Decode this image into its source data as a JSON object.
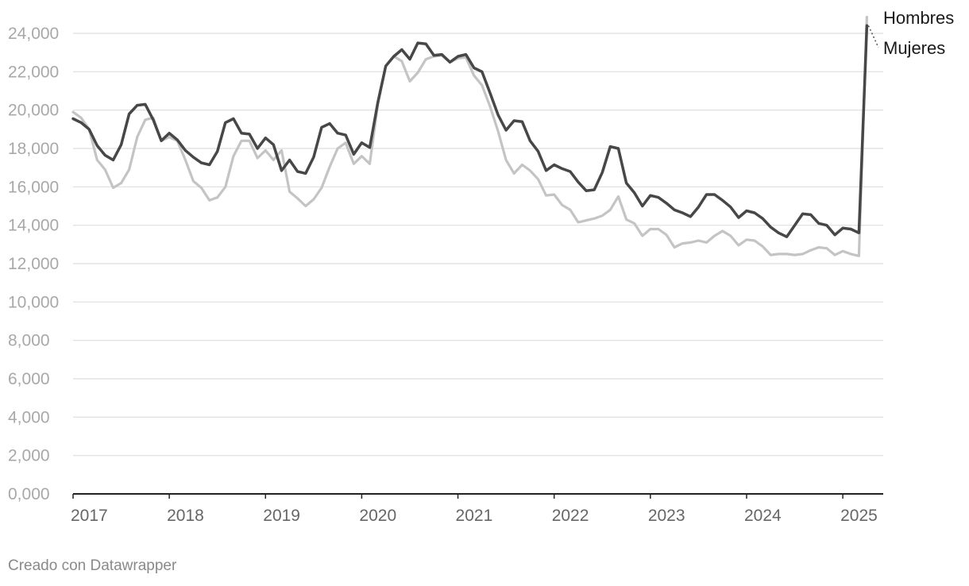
{
  "chart_data": {
    "type": "line",
    "ylim": [
      0,
      24000
    ],
    "yticks": [
      "0,000",
      "2,000",
      "4,000",
      "6,000",
      "8,000",
      "10,000",
      "12,000",
      "14,000",
      "16,000",
      "18,000",
      "20,000",
      "22,000",
      "24,000"
    ],
    "ytick_values": [
      0,
      2000,
      4000,
      6000,
      8000,
      10000,
      12000,
      14000,
      16000,
      18000,
      20000,
      22000,
      24000
    ],
    "xticks": [
      "2017",
      "2018",
      "2019",
      "2020",
      "2021",
      "2022",
      "2023",
      "2024",
      "2025"
    ],
    "xtick_values": [
      2017,
      2018,
      2019,
      2020,
      2021,
      2022,
      2023,
      2024,
      2025
    ],
    "xlim": [
      2017,
      2025.42
    ],
    "grid": true,
    "x": [
      2017.0,
      2017.083,
      2017.167,
      2017.25,
      2017.333,
      2017.417,
      2017.5,
      2017.583,
      2017.667,
      2017.75,
      2017.833,
      2017.917,
      2018.0,
      2018.083,
      2018.167,
      2018.25,
      2018.333,
      2018.417,
      2018.5,
      2018.583,
      2018.667,
      2018.75,
      2018.833,
      2018.917,
      2019.0,
      2019.083,
      2019.167,
      2019.25,
      2019.333,
      2019.417,
      2019.5,
      2019.583,
      2019.667,
      2019.75,
      2019.833,
      2019.917,
      2020.0,
      2020.083,
      2020.167,
      2020.25,
      2020.333,
      2020.417,
      2020.5,
      2020.583,
      2020.667,
      2020.75,
      2020.833,
      2020.917,
      2021.0,
      2021.083,
      2021.167,
      2021.25,
      2021.333,
      2021.417,
      2021.5,
      2021.583,
      2021.667,
      2021.75,
      2021.833,
      2021.917,
      2022.0,
      2022.083,
      2022.167,
      2022.25,
      2022.333,
      2022.417,
      2022.5,
      2022.583,
      2022.667,
      2022.75,
      2022.833,
      2022.917,
      2023.0,
      2023.083,
      2023.167,
      2023.25,
      2023.333,
      2023.417,
      2023.5,
      2023.583,
      2023.667,
      2023.75,
      2023.833,
      2023.917,
      2024.0,
      2024.083,
      2024.167,
      2024.25,
      2024.333,
      2024.417,
      2024.5,
      2024.583,
      2024.667,
      2024.75,
      2024.833,
      2024.917,
      2025.0,
      2025.083,
      2025.167,
      2025.25
    ],
    "series": [
      {
        "name": "Mujeres",
        "color": "#c4c4c4",
        "values": [
          19900,
          19600,
          19000,
          17400,
          16900,
          15950,
          16200,
          16900,
          18600,
          19500,
          19600,
          18400,
          18600,
          18400,
          17400,
          16300,
          15950,
          15300,
          15450,
          16000,
          17600,
          18400,
          18400,
          17500,
          17900,
          17400,
          17900,
          15750,
          15400,
          15000,
          15350,
          15950,
          17050,
          18000,
          18300,
          17200,
          17600,
          17200,
          20300,
          22300,
          22800,
          22550,
          21500,
          21950,
          22650,
          22800,
          22850,
          22500,
          22700,
          22750,
          21800,
          21300,
          20200,
          18900,
          17400,
          16700,
          17150,
          16850,
          16400,
          15550,
          15600,
          15050,
          14800,
          14150,
          14250,
          14350,
          14500,
          14800,
          15500,
          14300,
          14100,
          13450,
          13800,
          13800,
          13500,
          12850,
          13050,
          13100,
          13200,
          13100,
          13450,
          13700,
          13450,
          12950,
          13250,
          13200,
          12900,
          12450,
          12500,
          12500,
          12450,
          12500,
          12700,
          12850,
          12800,
          12450,
          12650,
          12500,
          12400,
          24850
        ]
      },
      {
        "name": "Hombres",
        "color": "#474747",
        "values": [
          19550,
          19350,
          19000,
          18150,
          17650,
          17400,
          18200,
          19800,
          20250,
          20300,
          19500,
          18400,
          18800,
          18450,
          17900,
          17550,
          17250,
          17150,
          17850,
          19350,
          19550,
          18800,
          18750,
          18000,
          18550,
          18200,
          16850,
          17400,
          16800,
          16700,
          17550,
          19100,
          19300,
          18800,
          18700,
          17700,
          18300,
          18050,
          20400,
          22300,
          22800,
          23150,
          22650,
          23500,
          23450,
          22850,
          22900,
          22500,
          22800,
          22900,
          22200,
          22000,
          20900,
          19750,
          18950,
          19450,
          19400,
          18400,
          17850,
          16850,
          17150,
          16950,
          16800,
          16250,
          15800,
          15850,
          16750,
          18100,
          18000,
          16200,
          15700,
          15000,
          15550,
          15450,
          15150,
          14800,
          14650,
          14450,
          14950,
          15600,
          15600,
          15300,
          14950,
          14400,
          14750,
          14650,
          14350,
          13900,
          13600,
          13400,
          14000,
          14600,
          14550,
          14100,
          14000,
          13500,
          13850,
          13800,
          13600,
          24400
        ]
      }
    ]
  },
  "footer": "Creado con Datawrapper"
}
